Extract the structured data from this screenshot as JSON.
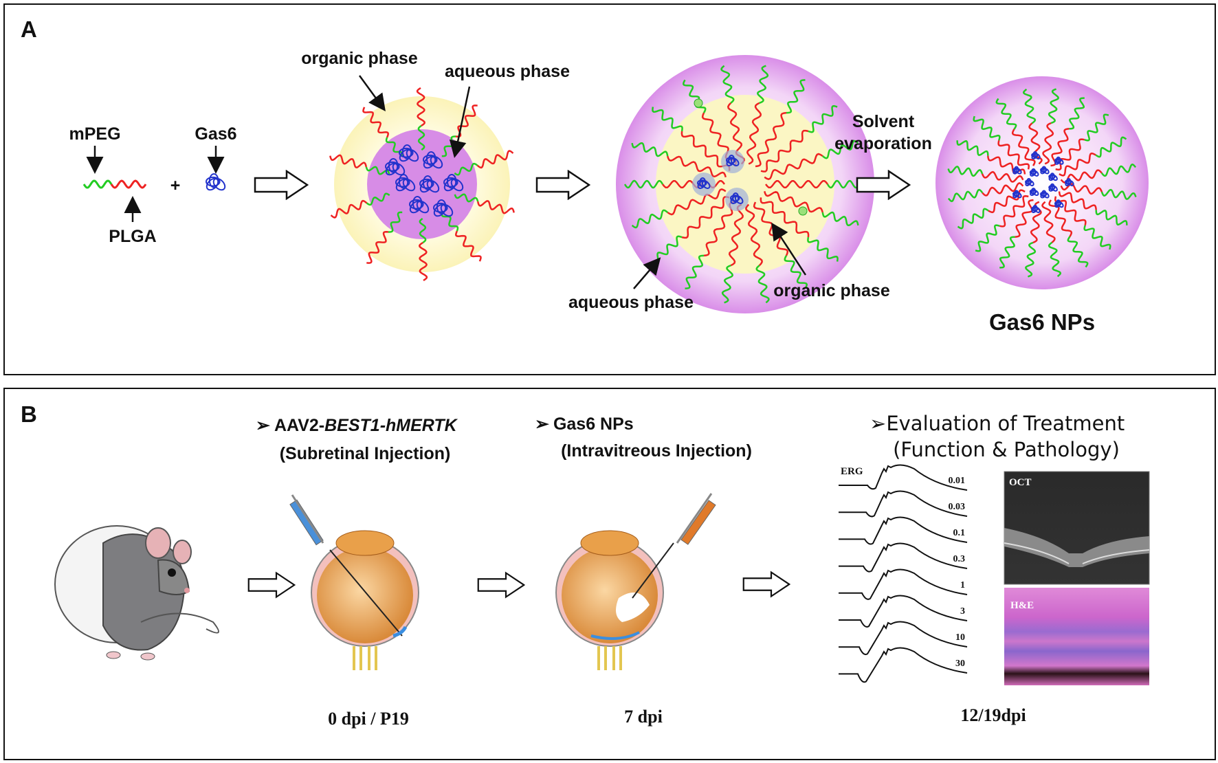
{
  "panel_a": {
    "label": "A",
    "mpeg": "mPEG",
    "plga": "PLGA",
    "gas6": "Gas6",
    "plus": "+",
    "organic_phase_1": "organic phase",
    "aqueous_phase_1": "aqueous phase",
    "aqueous_phase_2": "aqueous phase",
    "organic_phase_2": "organic phase",
    "solvent_1": "Solvent",
    "solvent_2": "evaporation",
    "product": "Gas6 NPs"
  },
  "panel_b": {
    "label": "B",
    "step1_title_plain": "AAV2-",
    "step1_title_italic": "BEST1-hMERTK",
    "step1_sub": "(Subretinal Injection)",
    "step2_title": "Gas6 NPs",
    "step2_sub": "(Intravitreous Injection)",
    "step3_title": "Evaluation of Treatment",
    "step3_sub": "(Function & Pathology)",
    "time1": "0 dpi / P19",
    "time2": "7 dpi",
    "time3": "12/19dpi",
    "erg_label": "ERG",
    "erg_intensities": [
      "0.01",
      "0.03",
      "0.1",
      "0.3",
      "1",
      "3",
      "10",
      "30"
    ],
    "oct_label": "OCT",
    "he_label": "H&E",
    "bullet": "➢"
  },
  "colors": {
    "peg": "#22cc22",
    "plga": "#ee2222",
    "gas6": "#2233cc",
    "aqueous": "#d98ee8",
    "organic": "#fbf6c4"
  }
}
